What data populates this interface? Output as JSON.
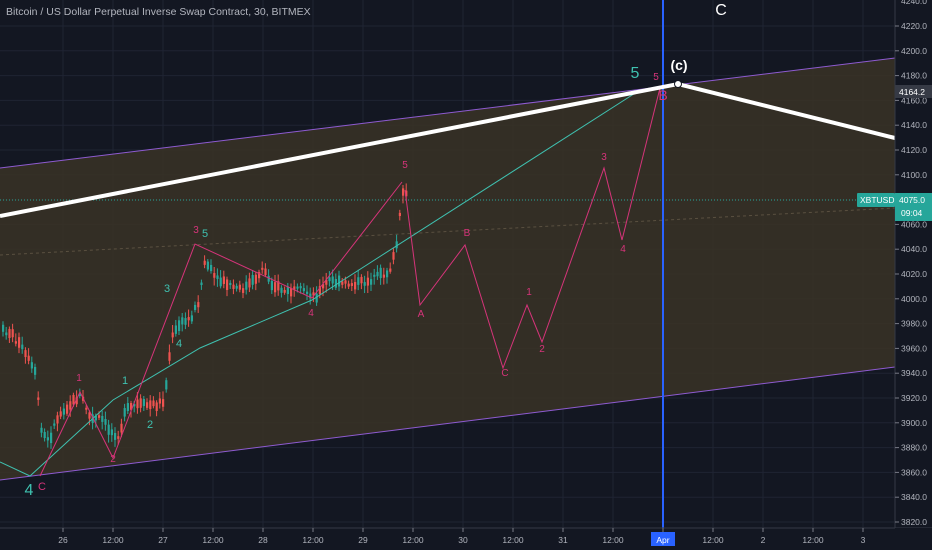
{
  "title": "Bitcoin / US Dollar Perpetual Inverse Swap Contract, 30, BITMEX",
  "symbol_tag": "XBTUSD",
  "price_tag": "4075.0",
  "countdown": "09:04",
  "hover_price": "4164.2",
  "colors": {
    "background": "#131722",
    "channel_fill": "#3a3326",
    "wave_pink": "#d6347a",
    "wave_teal": "#3fc1b0",
    "wave_white": "#ffffff",
    "candle_up": "#26a69a",
    "candle_down": "#ef5350",
    "vline": "#2962ff"
  },
  "chart_data": {
    "type": "candlestick",
    "ylim": [
      3816,
      4234
    ],
    "y_ticks": [
      "4220.0",
      "4200.0",
      "4180.0",
      "4160.0",
      "4140.0",
      "4120.0",
      "4100.0",
      "4080.0",
      "4060.0",
      "4040.0",
      "4020.0",
      "4000.0",
      "3980.0",
      "3960.0",
      "3940.0",
      "3920.0",
      "3900.0",
      "3880.0",
      "3860.0",
      "3840.0",
      "3820.0"
    ],
    "x_ticks": [
      "26",
      "12:00",
      "27",
      "12:00",
      "28",
      "12:00",
      "29",
      "12:00",
      "30",
      "12:00",
      "31",
      "12:00",
      "Apr",
      "12:00",
      "2",
      "12:00",
      "3"
    ],
    "wave_labels": [
      {
        "text": "4",
        "color": "teal"
      },
      {
        "text": "C",
        "color": "pink"
      },
      {
        "text": "1",
        "color": "pink"
      },
      {
        "text": "2",
        "color": "pink"
      },
      {
        "text": "1",
        "color": "teal"
      },
      {
        "text": "2",
        "color": "teal"
      },
      {
        "text": "3",
        "color": "teal"
      },
      {
        "text": "4",
        "color": "teal"
      },
      {
        "text": "3",
        "color": "pink"
      },
      {
        "text": "5",
        "color": "teal"
      },
      {
        "text": "4",
        "color": "pink"
      },
      {
        "text": "5",
        "color": "pink"
      },
      {
        "text": "A",
        "color": "pink"
      },
      {
        "text": "B",
        "color": "pink"
      },
      {
        "text": "C",
        "color": "pink"
      },
      {
        "text": "1",
        "color": "pink"
      },
      {
        "text": "2",
        "color": "pink"
      },
      {
        "text": "3",
        "color": "pink"
      },
      {
        "text": "4",
        "color": "pink"
      },
      {
        "text": "5",
        "color": "pink"
      },
      {
        "text": "5",
        "color": "teal"
      },
      {
        "text": "B",
        "color": "pink"
      },
      {
        "text": "(c)",
        "color": "white"
      },
      {
        "text": "C",
        "color": "white"
      }
    ]
  }
}
